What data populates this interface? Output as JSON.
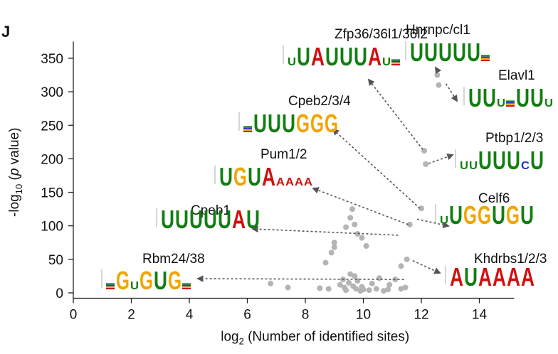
{
  "panel_letter": "J",
  "chart_data": {
    "type": "scatter",
    "title": "",
    "xlabel_base": "log",
    "xlabel_sub": "2",
    "xlabel_rest": " (Number of identified sites)",
    "ylabel_pre": "-log",
    "ylabel_sub": "10",
    "ylabel_open": " (",
    "ylabel_italic": "p",
    "ylabel_close": " value)",
    "xlim": [
      0,
      15.2
    ],
    "ylim": [
      -8,
      375
    ],
    "x_ticks": [
      0,
      2,
      4,
      6,
      8,
      10,
      12,
      14
    ],
    "y_ticks": [
      0,
      50,
      100,
      150,
      200,
      250,
      300,
      350
    ],
    "grid": false,
    "point_color": "#b4b4b4",
    "points": [
      [
        6.8,
        14
      ],
      [
        7.4,
        8
      ],
      [
        8.5,
        7
      ],
      [
        8.8,
        6
      ],
      [
        8.7,
        45
      ],
      [
        8.9,
        60
      ],
      [
        9.0,
        75
      ],
      [
        9.0,
        68
      ],
      [
        9.2,
        12
      ],
      [
        9.3,
        20
      ],
      [
        9.35,
        8
      ],
      [
        9.4,
        4
      ],
      [
        9.5,
        15
      ],
      [
        9.55,
        28
      ],
      [
        9.65,
        10
      ],
      [
        9.7,
        25
      ],
      [
        9.75,
        6
      ],
      [
        9.8,
        18
      ],
      [
        9.9,
        3
      ],
      [
        9.95,
        9
      ],
      [
        10.0,
        5
      ],
      [
        10.1,
        70
      ],
      [
        10.2,
        4
      ],
      [
        10.3,
        14
      ],
      [
        10.45,
        6
      ],
      [
        10.55,
        22
      ],
      [
        10.7,
        3
      ],
      [
        10.85,
        5
      ],
      [
        10.9,
        12
      ],
      [
        11.1,
        20
      ],
      [
        11.3,
        6
      ],
      [
        11.45,
        8
      ],
      [
        11.3,
        40
      ],
      [
        9.4,
        98
      ],
      [
        9.55,
        112
      ],
      [
        9.62,
        125
      ],
      [
        9.7,
        102
      ],
      [
        9.8,
        88
      ],
      [
        9.95,
        82
      ],
      [
        11.5,
        50
      ],
      [
        11.6,
        102
      ],
      [
        12.0,
        126
      ],
      [
        12.1,
        212
      ],
      [
        12.15,
        192
      ],
      [
        12.55,
        325
      ],
      [
        12.6,
        310
      ]
    ],
    "rbps": [
      {
        "name": "Hnrnpc/cl1",
        "point": [
          12.58,
          330
        ],
        "motif": "UUUUU_"
      },
      {
        "name": "Elavl1",
        "point": [
          12.85,
          312
        ],
        "motif": "UUu_UUu"
      },
      {
        "name": "Zfp36/36l1/36l2",
        "point": [
          12.05,
          214
        ],
        "motif": "uUAUUUAu_"
      },
      {
        "name": "Ptbp1/2/3",
        "point": [
          12.25,
          193
        ],
        "motif": "uuUUUcU"
      },
      {
        "name": "Cpeb2/3/4",
        "point": [
          11.95,
          126
        ],
        "motif": "_UUUGGG"
      },
      {
        "name": "Pum1/2",
        "point": [
          11.55,
          102
        ],
        "motif": "UGUAaaaa"
      },
      {
        "name": "Celf6",
        "point": [
          11.85,
          110
        ],
        "motif": "uUGGUGU"
      },
      {
        "name": "Cpeb1",
        "point": [
          11.2,
          86
        ],
        "motif": "UUUUUAU"
      },
      {
        "name": "Khdrbs1/2/3",
        "point": [
          11.7,
          48
        ],
        "motif": "AUAAAA"
      },
      {
        "name": "Rbm24/38",
        "point": [
          11.4,
          20
        ],
        "motif": "_GuGUG_"
      }
    ]
  }
}
